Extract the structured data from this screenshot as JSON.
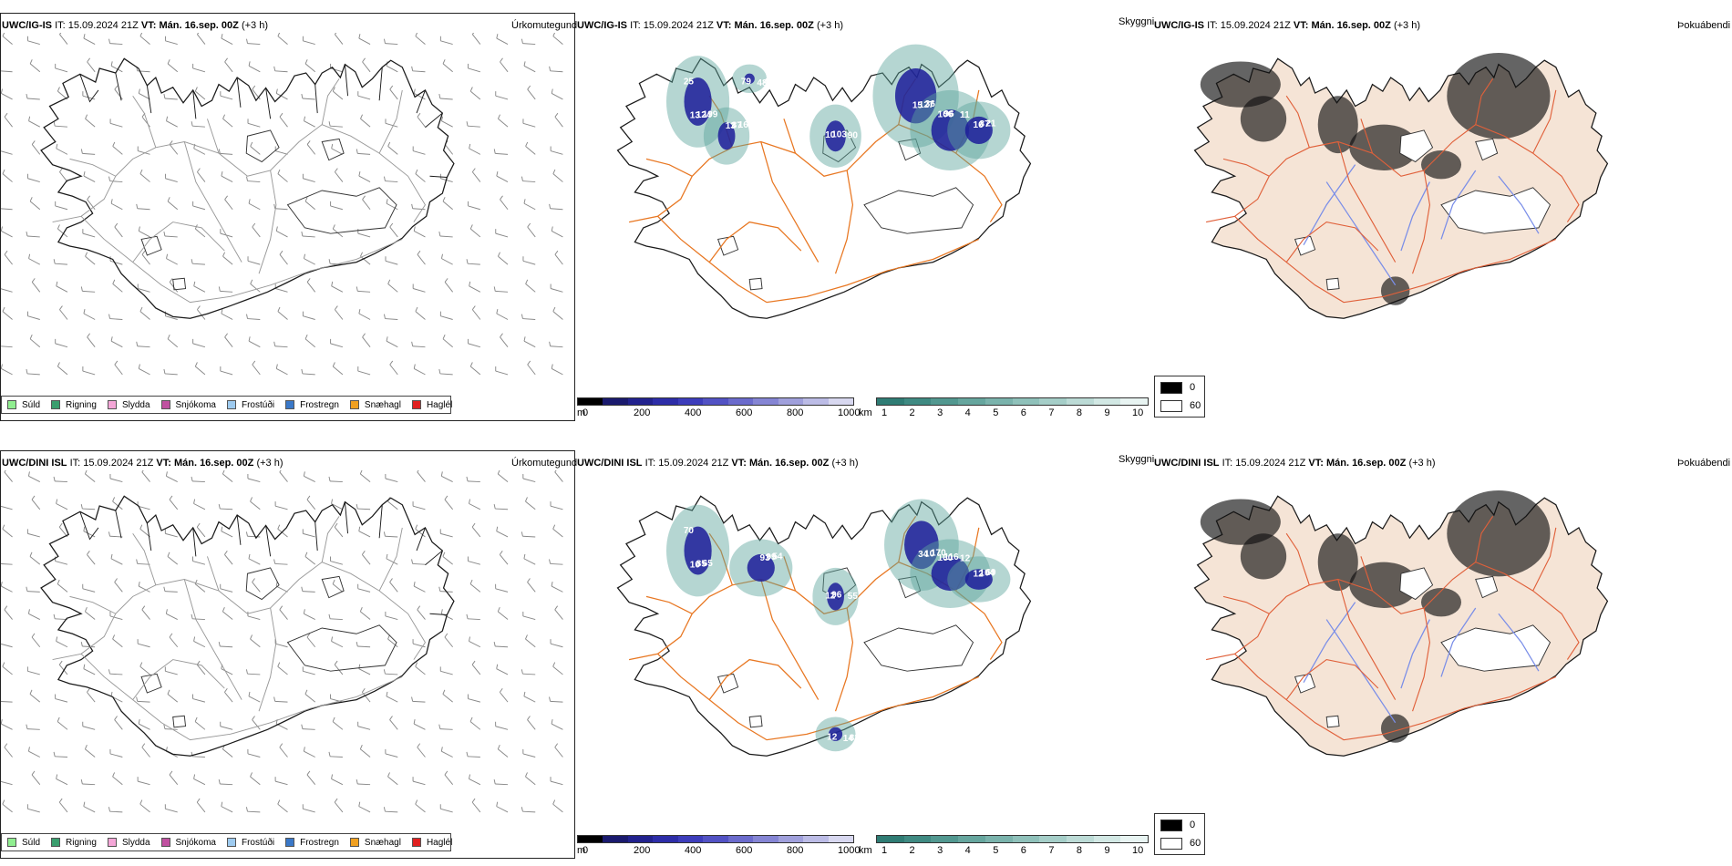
{
  "rows": [
    {
      "model": "UWC/IG-IS",
      "it_label": "IT:",
      "it_value": "15.09.2024 21Z",
      "vt_label": "VT:",
      "vt_value": "Mán. 16.sep. 00Z",
      "lead": "(+3 h)",
      "precip_title": "Úrkomutegund",
      "vis_title": "Skyggni",
      "fog_title": "Þokuábendi"
    },
    {
      "model": "UWC/DINI ISL",
      "it_label": "IT:",
      "it_value": "15.09.2024 21Z",
      "vt_label": "VT:",
      "vt_value": "Mán. 16.sep. 00Z",
      "lead": "(+3 h)",
      "precip_title": "Úrkomutegund",
      "vis_title": "Skyggni",
      "fog_title": "Þokuábendi"
    }
  ],
  "precip_legend": [
    {
      "label": "Súld",
      "color": "#90ee90"
    },
    {
      "label": "Rigning",
      "color": "#3a9e6e"
    },
    {
      "label": "Slydda",
      "color": "#f4a6d7"
    },
    {
      "label": "Snjókoma",
      "color": "#c050a0"
    },
    {
      "label": "Frostúði",
      "color": "#9ecbf0"
    },
    {
      "label": "Frostregn",
      "color": "#3a78c8"
    },
    {
      "label": "Snæhagl",
      "color": "#f0a020"
    },
    {
      "label": "Haglél",
      "color": "#e02020"
    }
  ],
  "ceiling_bar": {
    "unit": "m",
    "ticks": [
      "0",
      "200",
      "400",
      "600",
      "800",
      "1000"
    ],
    "colors": [
      "#000000",
      "#1a1a6e",
      "#22228e",
      "#2d2da8",
      "#3d3dbb",
      "#5252c4",
      "#6b6bcc",
      "#8585d4",
      "#a0a0dc",
      "#bcbce6",
      "#d8d8f0"
    ]
  },
  "visibility_bar": {
    "unit": "km",
    "ticks": [
      "1",
      "2",
      "3",
      "4",
      "5",
      "6",
      "7",
      "8",
      "9",
      "10"
    ],
    "colors": [
      "#2f7c74",
      "#3f8a82",
      "#529890",
      "#66a69e",
      "#7ab3ac",
      "#8fc1ba",
      "#a5cec8",
      "#bcdbd6",
      "#d2e8e4",
      "#e8f4f2"
    ]
  },
  "fog_key": {
    "high": "0",
    "low": "60"
  },
  "ceiling_labels": {
    "top": [
      "25",
      "13",
      "90",
      "15",
      "11",
      "16",
      "48",
      "13",
      "87",
      "10",
      "127",
      "106",
      "87",
      "44",
      "124",
      "163",
      "103",
      "36",
      "96",
      "21",
      "79",
      "199"
    ],
    "bottom": [
      "70",
      "93",
      "55",
      "34",
      "12",
      "12",
      "14",
      "10",
      "99",
      "12",
      "10",
      "160",
      "104",
      "82",
      "85",
      "54",
      "96",
      "170",
      "116",
      "69",
      "12",
      "65"
    ]
  },
  "colors": {
    "coast": "#1a1a1a",
    "roads": "#e87722",
    "rivers": "#7a8ee8",
    "land_fog": "#f5e4d6",
    "glacier": "#ffffff",
    "ceiling_blue": "#1c1c9a",
    "vis_teal": "#5aa59c"
  }
}
